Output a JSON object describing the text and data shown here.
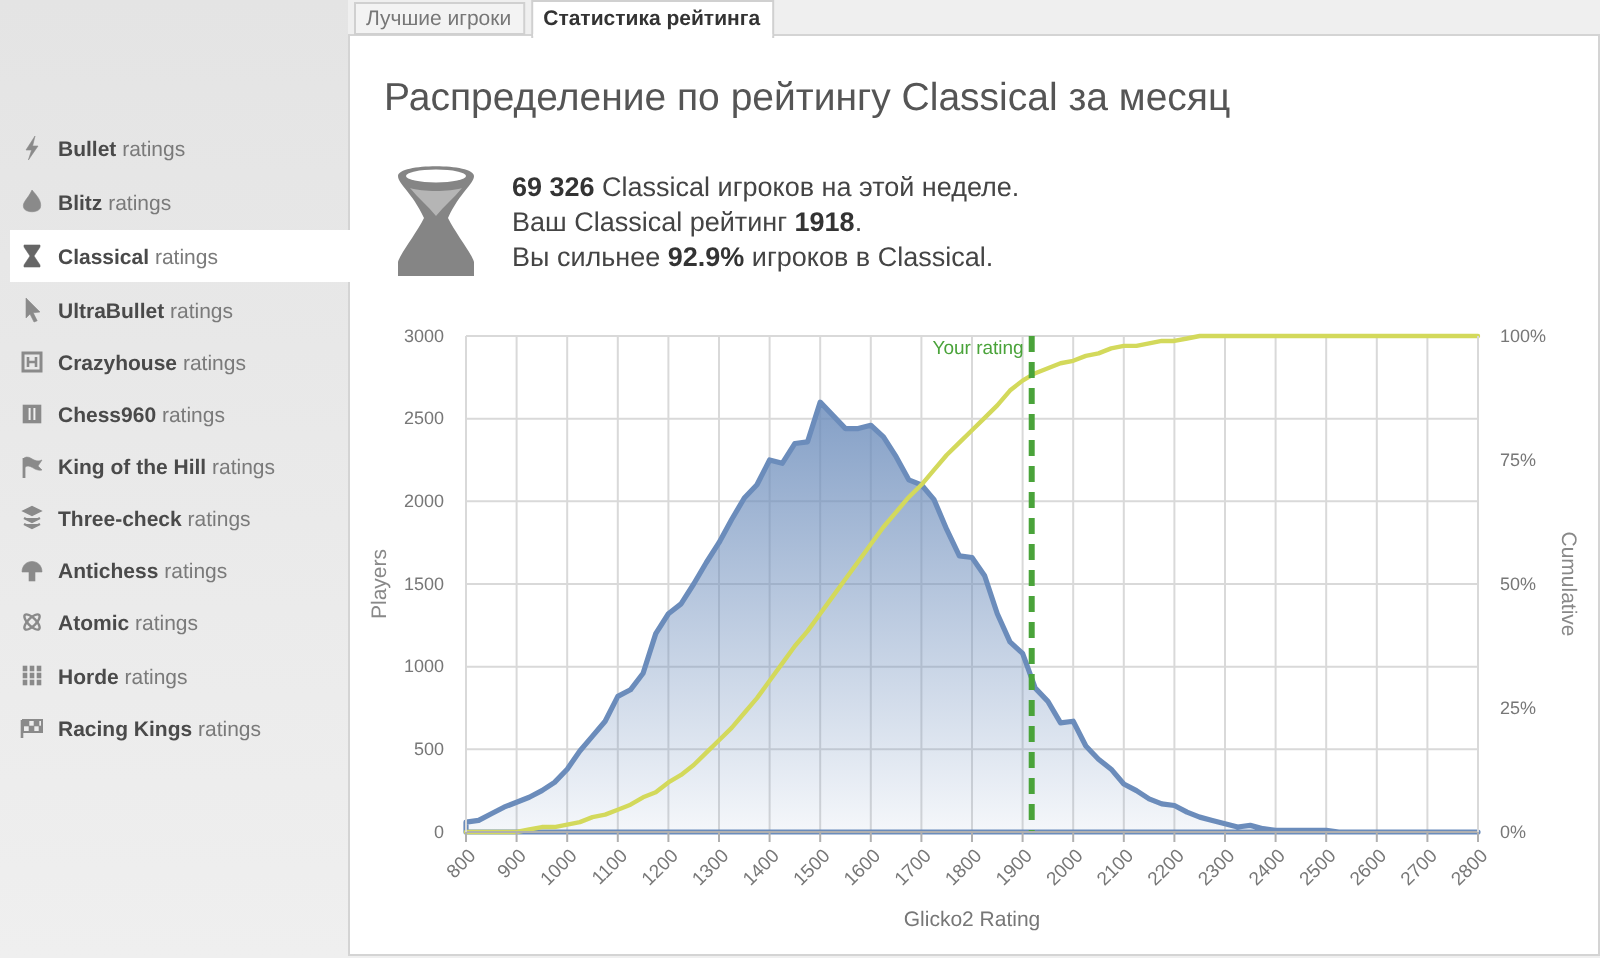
{
  "chart_data": {
    "type": "area",
    "title": "Распределение по рейтингу Classical за месяц",
    "xlabel": "Glicko2 Rating",
    "ylabel": "Players",
    "y2label": "Cumulative",
    "annotations": [
      "Лучшие игроки",
      "Статистика рейтинга",
      "Bullet ratings",
      "Blitz ratings",
      "Classical ratings",
      "UltraBullet ratings",
      "Crazyhouse ratings",
      "Chess960 ratings",
      "King of the Hill ratings",
      "Three-check ratings",
      "Antichess ratings",
      "Atomic ratings",
      "Horde ratings",
      "Racing Kings ratings",
      "69 326 Classical игроков на этой неделе.",
      "Ваш Classical рейтинг 1918.",
      "Вы сильнее 92.9% игроков в Classical."
    ],
    "x": [
      800,
      825,
      850,
      875,
      900,
      925,
      950,
      975,
      1000,
      1025,
      1050,
      1075,
      1100,
      1125,
      1150,
      1175,
      1200,
      1225,
      1250,
      1275,
      1300,
      1325,
      1350,
      1375,
      1400,
      1425,
      1450,
      1475,
      1500,
      1525,
      1550,
      1575,
      1600,
      1625,
      1650,
      1675,
      1700,
      1725,
      1750,
      1775,
      1800,
      1825,
      1850,
      1875,
      1900,
      1925,
      1950,
      1975,
      2000,
      2025,
      2050,
      2075,
      2100,
      2125,
      2150,
      2175,
      2200,
      2225,
      2250,
      2275,
      2300,
      2325,
      2350,
      2375,
      2400,
      2425,
      2450,
      2475,
      2500,
      2525,
      2550,
      2575,
      2600,
      2625,
      2650,
      2675,
      2700,
      2725,
      2750,
      2775,
      2800
    ],
    "series": [
      {
        "color": "#6b8cbb",
        "values": [
          60,
          70,
          110,
          150,
          180,
          210,
          250,
          300,
          380,
          490,
          580,
          670,
          820,
          860,
          960,
          1200,
          1320,
          1380,
          1500,
          1630,
          1750,
          1890,
          2020,
          2100,
          2250,
          2230,
          2350,
          2360,
          2600,
          2520,
          2440,
          2440,
          2460,
          2390,
          2270,
          2130,
          2100,
          2010,
          1830,
          1670,
          1660,
          1550,
          1320,
          1150,
          1080,
          870,
          790,
          660,
          670,
          520,
          440,
          380,
          290,
          250,
          200,
          170,
          160,
          120,
          90,
          70,
          50,
          30,
          40,
          20,
          10,
          10,
          10,
          10,
          10,
          0,
          0,
          0,
          0,
          0,
          0,
          0,
          0,
          0,
          0,
          0,
          0
        ]
      },
      {
        "type": "line",
        "axis": "y2",
        "color": "#d3d95b",
        "values": [
          0,
          0,
          0,
          0,
          0,
          0.5,
          1,
          1,
          1.5,
          2,
          3,
          3.5,
          4.5,
          5.5,
          7,
          8,
          10,
          11.5,
          13.5,
          16,
          18.5,
          21,
          24,
          27,
          30.5,
          34,
          37.5,
          40.5,
          44,
          47.5,
          51,
          54.5,
          58,
          61.5,
          64.5,
          67.5,
          70,
          73,
          76,
          78.5,
          81,
          83.5,
          86,
          89,
          91,
          92.5,
          93.5,
          94.5,
          95,
          96,
          96.5,
          97.5,
          98,
          98,
          98.5,
          99,
          99,
          99.5,
          100,
          100,
          100,
          100,
          100,
          100,
          100,
          100,
          100,
          100,
          100,
          100,
          100,
          100,
          100,
          100,
          100,
          100,
          100,
          100,
          100,
          100,
          100
        ]
      }
    ],
    "xlim": [
      800,
      2800
    ],
    "xticks": [
      800,
      900,
      1000,
      1100,
      1200,
      1300,
      1400,
      1500,
      1600,
      1700,
      1800,
      1900,
      2000,
      2100,
      2200,
      2300,
      2400,
      2500,
      2600,
      2700,
      2800
    ],
    "ylim": [
      0,
      3000
    ],
    "yticks": [
      0,
      500,
      1000,
      1500,
      2000,
      2500,
      3000
    ],
    "y2lim": [
      0,
      100
    ],
    "y2ticks": [
      {
        "value": 0,
        "label": "0%"
      },
      {
        "value": 25,
        "label": "25%"
      },
      {
        "value": 50,
        "label": "50%"
      },
      {
        "value": 75,
        "label": "75%"
      },
      {
        "value": 100,
        "label": "100%"
      }
    ],
    "grid": true,
    "ref_lines": [
      {
        "axis": "x",
        "value": 1918,
        "label": "Your rating",
        "color": "#4aa33a",
        "line_style": "dashed"
      }
    ]
  }
}
